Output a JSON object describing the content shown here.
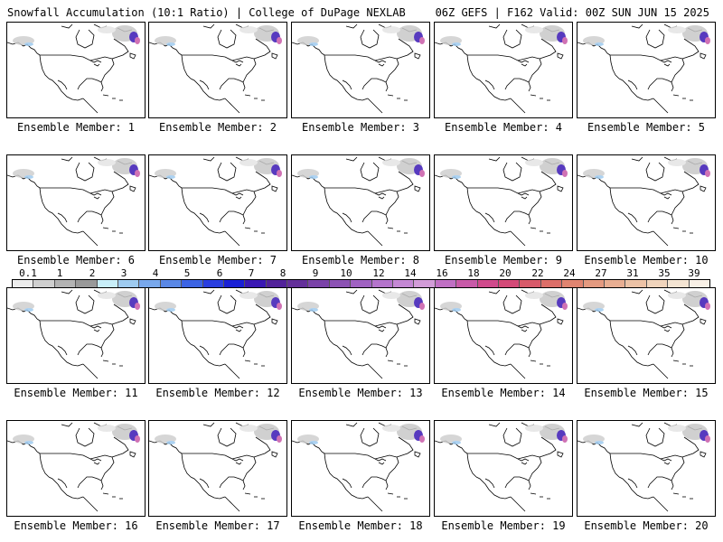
{
  "header": {
    "left": "Snowfall Accumulation (10:1 Ratio) | College of DuPage NEXLAB",
    "right": "06Z GEFS | F162 Valid: 00Z SUN JUN 15 2025"
  },
  "members": [
    "Ensemble Member: 1",
    "Ensemble Member: 2",
    "Ensemble Member: 3",
    "Ensemble Member: 4",
    "Ensemble Member: 5",
    "Ensemble Member: 6",
    "Ensemble Member: 7",
    "Ensemble Member: 8",
    "Ensemble Member: 9",
    "Ensemble Member: 10",
    "Ensemble Member: 11",
    "Ensemble Member: 12",
    "Ensemble Member: 13",
    "Ensemble Member: 14",
    "Ensemble Member: 15",
    "Ensemble Member: 16",
    "Ensemble Member: 17",
    "Ensemble Member: 18",
    "Ensemble Member: 19",
    "Ensemble Member: 20"
  ],
  "colorbar": {
    "ticks": [
      "0.1",
      "1",
      "2",
      "3",
      "4",
      "5",
      "6",
      "7",
      "8",
      "9",
      "10",
      "12",
      "14",
      "16",
      "18",
      "20",
      "22",
      "24",
      "27",
      "31",
      "35",
      "39"
    ],
    "colors": [
      "#ececec",
      "#cfcfcf",
      "#b3b3b3",
      "#999999",
      "#c8eef8",
      "#9ecbf0",
      "#78a8ec",
      "#5a88e6",
      "#3c64e4",
      "#2a3ee0",
      "#1a20d6",
      "#3a18b4",
      "#52229a",
      "#64309a",
      "#7a42a8",
      "#8c52b4",
      "#a062c2",
      "#b474cc",
      "#c488d4",
      "#d29cd8",
      "#c070c4",
      "#c85aa8",
      "#d04a8c",
      "#d44a78",
      "#d85a6a",
      "#dc6e68",
      "#e08470",
      "#e49a80",
      "#e8ae92",
      "#ecc2a6",
      "#f0d4bc",
      "#f4e4d2",
      "#f8f0e6"
    ]
  }
}
